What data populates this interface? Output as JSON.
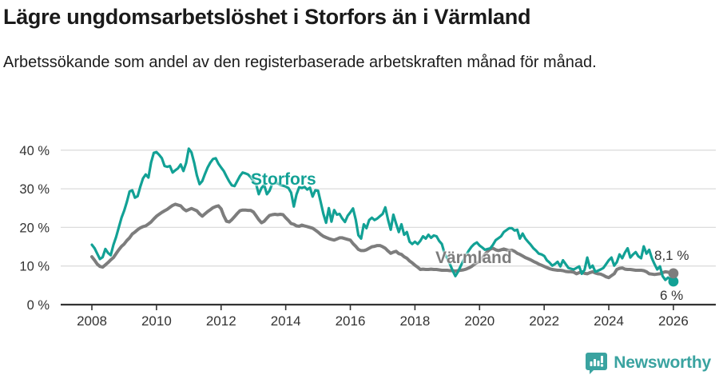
{
  "header": {
    "title": "Lägre ungdomsarbetslöshet i Storfors än i Värmland",
    "subtitle": "Arbetssökande som andel av den registerbaserade arbetskraften månad för månad."
  },
  "footer": {
    "brand": "Newsworthy",
    "brand_color": "#3aa3a0"
  },
  "chart_data": {
    "type": "line",
    "title": "Lägre ungdomsarbetslöshet i Storfors än i Värmland",
    "subtitle": "Arbetssökande som andel av den registerbaserade arbetskraften månad för månad.",
    "unit": "%",
    "grid": true,
    "legend_position": "inline-labels",
    "x_start_year": 2008,
    "x_step_months": 1,
    "xlim": [
      2008,
      2026.3
    ],
    "ylim": [
      0,
      42
    ],
    "yticks": [
      {
        "value": 0,
        "label": "0 %"
      },
      {
        "value": 10,
        "label": "10 %"
      },
      {
        "value": 20,
        "label": "20 %"
      },
      {
        "value": 30,
        "label": "30 %"
      },
      {
        "value": 40,
        "label": "40 %"
      }
    ],
    "xticks": [
      {
        "value": 2008,
        "label": "2008"
      },
      {
        "value": 2010,
        "label": "2010"
      },
      {
        "value": 2012,
        "label": "2012"
      },
      {
        "value": 2014,
        "label": "2014"
      },
      {
        "value": 2016,
        "label": "2016"
      },
      {
        "value": 2018,
        "label": "2018"
      },
      {
        "value": 2020,
        "label": "2020"
      },
      {
        "value": 2022,
        "label": "2022"
      },
      {
        "value": 2024,
        "label": "2024"
      },
      {
        "value": 2026,
        "label": "2026"
      }
    ],
    "series": [
      {
        "name": "Storfors",
        "color": "#12a195",
        "line_width": 3.2,
        "end_label": "6 %",
        "end_value": 6.0,
        "values": [
          15.5,
          14.6,
          13.2,
          11.8,
          12.3,
          14.4,
          13.4,
          12.8,
          15.5,
          17.5,
          20.0,
          22.5,
          24.3,
          26.6,
          29.3,
          29.6,
          27.7,
          28.1,
          30.6,
          32.7,
          33.7,
          32.9,
          36.8,
          39.3,
          39.5,
          38.8,
          37.9,
          35.9,
          35.7,
          35.9,
          34.2,
          34.8,
          35.3,
          36.3,
          34.6,
          36.7,
          40.4,
          39.4,
          36.7,
          33.5,
          31.2,
          32.0,
          33.8,
          35.5,
          36.8,
          37.7,
          37.9,
          36.5,
          35.5,
          34.6,
          33.2,
          31.9,
          30.9,
          30.7,
          32.0,
          33.3,
          34.2,
          34.0,
          33.7,
          33.0,
          32.0,
          31.2,
          28.6,
          30.2,
          31.0,
          28.6,
          29.5,
          31.3,
          31.4,
          31.5,
          31.0,
          30.8,
          30.6,
          30.2,
          29.0,
          25.4,
          28.5,
          30.4,
          30.2,
          30.5,
          29.8,
          30.3,
          28.0,
          29.6,
          29.5,
          26.6,
          23.5,
          21.2,
          25.0,
          21.5,
          24.5,
          23.3,
          23.5,
          22.3,
          21.4,
          23.0,
          23.9,
          24.9,
          22.0,
          18.0,
          17.1,
          20.8,
          19.8,
          21.9,
          22.5,
          21.9,
          22.3,
          22.9,
          23.5,
          25.2,
          22.0,
          19.4,
          23.3,
          21.0,
          18.8,
          20.8,
          18.1,
          18.8,
          16.3,
          15.7,
          16.3,
          15.7,
          16.5,
          17.7,
          17.1,
          18.1,
          17.3,
          17.9,
          17.7,
          16.5,
          15.7,
          13.2,
          12.0,
          10.5,
          8.8,
          7.4,
          8.5,
          10.0,
          11.5,
          12.8,
          14.0,
          15.0,
          15.7,
          16.1,
          15.3,
          14.8,
          14.2,
          14.4,
          14.6,
          15.5,
          16.7,
          17.2,
          17.7,
          18.8,
          19.3,
          19.8,
          19.8,
          19.2,
          19.4,
          17.1,
          18.4,
          17.1,
          16.3,
          15.5,
          14.6,
          14.0,
          13.2,
          13.0,
          12.6,
          11.5,
          10.9,
          10.1,
          10.5,
          11.1,
          9.9,
          11.5,
          10.5,
          9.5,
          9.3,
          9.1,
          9.5,
          9.9,
          8.0,
          9.0,
          12.2,
          9.5,
          10.1,
          8.5,
          8.8,
          9.1,
          9.5,
          10.5,
          11.5,
          12.2,
          10.1,
          11.0,
          13.0,
          12.0,
          13.5,
          14.6,
          12.2,
          13.0,
          13.6,
          12.5,
          12.0,
          15.1,
          13.2,
          14.2,
          12.0,
          10.5,
          9.1,
          9.9,
          7.4,
          6.4,
          7.0,
          6.5,
          6.0
        ]
      },
      {
        "name": "Värmland",
        "color": "#7d7d7d",
        "line_width": 4,
        "end_label": "8,1 %",
        "end_value": 8.1,
        "values": [
          12.4,
          11.5,
          10.5,
          9.9,
          9.7,
          10.3,
          10.9,
          11.6,
          12.2,
          13.2,
          14.2,
          15.1,
          15.7,
          16.6,
          17.3,
          18.3,
          18.8,
          19.4,
          19.9,
          20.2,
          20.4,
          20.9,
          21.4,
          22.2,
          22.9,
          23.4,
          23.9,
          24.3,
          24.7,
          25.2,
          25.7,
          26.0,
          25.8,
          25.6,
          24.8,
          24.3,
          24.6,
          24.9,
          24.6,
          24.3,
          23.5,
          22.9,
          23.5,
          24.1,
          24.6,
          25.1,
          25.4,
          25.6,
          24.8,
          23.0,
          21.6,
          21.4,
          22.0,
          22.8,
          23.6,
          24.3,
          24.5,
          24.5,
          24.4,
          24.4,
          24.0,
          23.0,
          22.0,
          21.2,
          21.6,
          22.4,
          23.1,
          23.3,
          23.4,
          23.3,
          23.4,
          23.3,
          22.5,
          21.8,
          21.0,
          20.8,
          20.4,
          20.3,
          20.6,
          20.4,
          20.2,
          20.0,
          19.8,
          19.3,
          18.8,
          18.2,
          17.7,
          17.4,
          17.1,
          16.9,
          16.7,
          17.0,
          17.3,
          17.3,
          17.1,
          16.9,
          16.7,
          15.8,
          15.1,
          14.3,
          14.0,
          14.0,
          14.2,
          14.6,
          15.0,
          15.1,
          15.3,
          15.3,
          15.0,
          14.6,
          13.9,
          13.3,
          13.6,
          13.8,
          13.2,
          13.0,
          12.4,
          12.0,
          11.3,
          10.8,
          10.2,
          9.7,
          9.1,
          9.2,
          9.1,
          9.1,
          9.2,
          9.1,
          9.1,
          9.0,
          8.9,
          8.9,
          8.9,
          8.8,
          8.8,
          8.7,
          8.8,
          8.9,
          9.0,
          9.2,
          9.5,
          9.9,
          10.4,
          10.9,
          11.2,
          12.0,
          13.0,
          13.8,
          14.4,
          14.6,
          14.2,
          14.0,
          14.2,
          14.4,
          14.2,
          14.0,
          14.1,
          13.8,
          13.3,
          13.0,
          12.6,
          12.2,
          11.9,
          11.6,
          11.2,
          10.9,
          10.5,
          10.2,
          9.9,
          9.6,
          9.3,
          9.1,
          9.0,
          8.9,
          8.9,
          8.8,
          8.6,
          8.5,
          8.5,
          8.4,
          8.0,
          8.3,
          8.5,
          8.1,
          8.0,
          8.3,
          8.5,
          8.2,
          8.0,
          7.9,
          7.6,
          7.2,
          7.0,
          7.5,
          8.0,
          9.1,
          9.4,
          9.5,
          9.2,
          9.1,
          9.1,
          9.0,
          8.9,
          8.9,
          8.9,
          8.8,
          8.5,
          8.0,
          7.9,
          7.8,
          7.9,
          8.0,
          8.3,
          8.5,
          8.4,
          8.2,
          8.1
        ]
      }
    ],
    "colors": {
      "axis": "#333333",
      "grid": "#dcdcdc",
      "text": "#333333"
    }
  }
}
